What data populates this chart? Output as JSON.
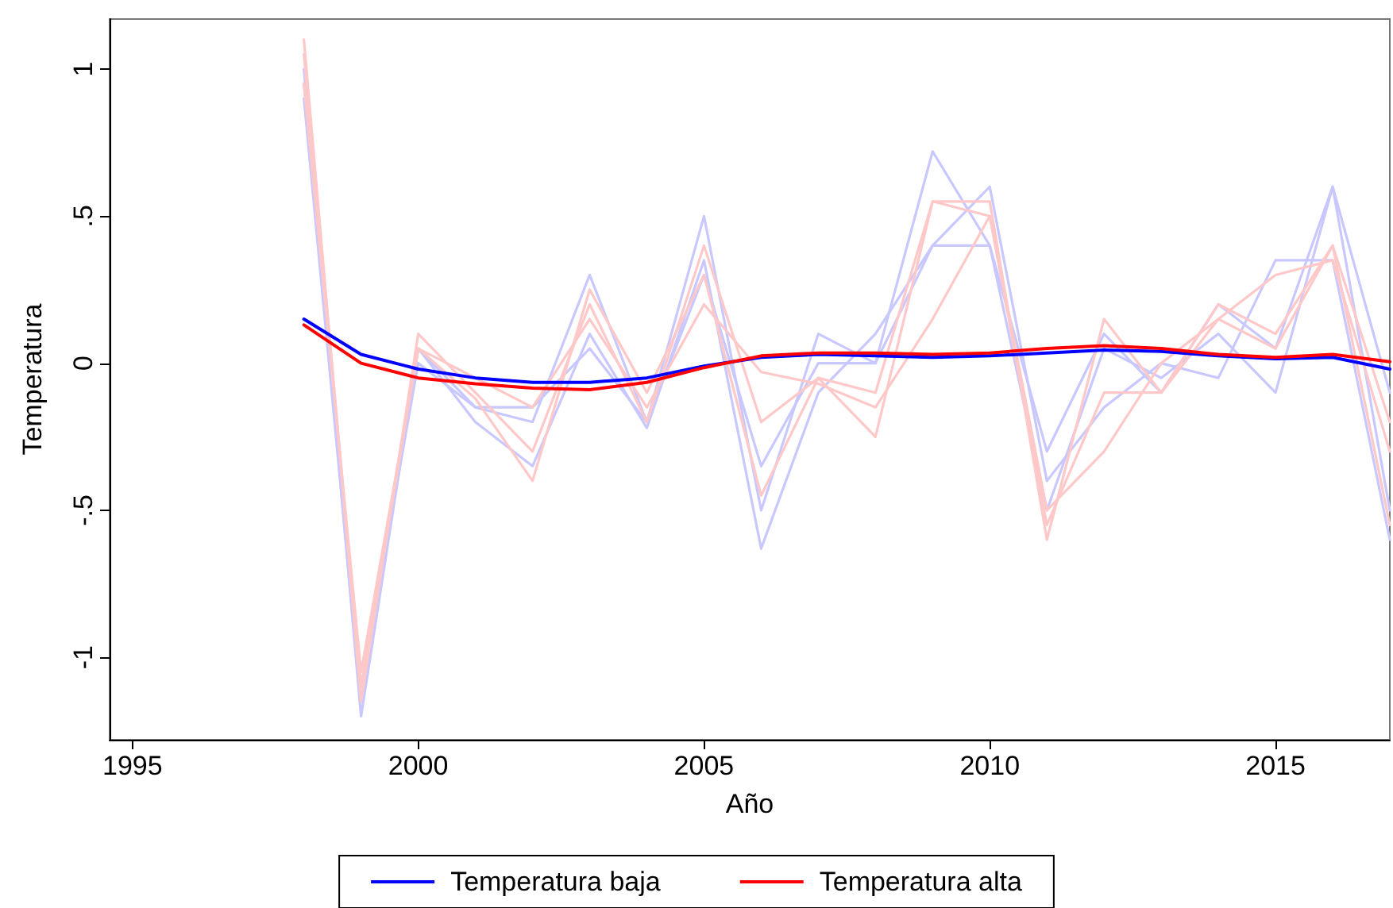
{
  "chart_data": {
    "type": "line",
    "xlabel": "Año",
    "ylabel": "Temperatura",
    "x": [
      1998,
      1999,
      2000,
      2001,
      2002,
      2003,
      2004,
      2005,
      2006,
      2007,
      2008,
      2009,
      2010,
      2011,
      2012,
      2013,
      2014,
      2015,
      2016,
      2017
    ],
    "series": [
      {
        "color": "#c8c8ff",
        "values": [
          1.0,
          -1.2,
          0.05,
          -0.15,
          -0.2,
          0.3,
          -0.2,
          0.5,
          -0.5,
          0.1,
          0.0,
          0.72,
          0.4,
          -0.5,
          0.05,
          -0.05,
          0.1,
          -0.1,
          0.6,
          -0.5
        ]
      },
      {
        "color": "#c8c8ff",
        "values": [
          0.9,
          -1.15,
          0.05,
          -0.2,
          -0.35,
          0.1,
          -0.22,
          0.35,
          -0.63,
          -0.1,
          0.1,
          0.4,
          0.6,
          -0.4,
          -0.15,
          0.0,
          -0.05,
          0.35,
          0.35,
          -0.6
        ]
      },
      {
        "color": "#c8c8ff",
        "values": [
          0.95,
          -1.1,
          0.0,
          -0.15,
          -0.15,
          0.05,
          -0.2,
          0.3,
          -0.35,
          0.0,
          0.0,
          0.4,
          0.4,
          -0.3,
          0.1,
          -0.1,
          0.2,
          0.05,
          0.6,
          -0.1
        ]
      },
      {
        "color": "#ffc8c8",
        "values": [
          1.1,
          -1.15,
          0.1,
          -0.1,
          -0.3,
          0.2,
          -0.2,
          0.4,
          -0.2,
          -0.05,
          -0.1,
          0.55,
          0.55,
          -0.6,
          0.15,
          -0.1,
          0.2,
          0.1,
          0.4,
          -0.55
        ]
      },
      {
        "color": "#ffc8c8",
        "values": [
          1.05,
          -1.1,
          0.05,
          -0.12,
          -0.4,
          0.25,
          -0.1,
          0.3,
          -0.45,
          -0.05,
          -0.25,
          0.55,
          0.5,
          -0.55,
          -0.1,
          -0.1,
          0.15,
          0.3,
          0.35,
          -0.3
        ]
      },
      {
        "color": "#ffc8c8",
        "values": [
          0.95,
          -1.05,
          0.05,
          -0.05,
          -0.15,
          0.15,
          -0.15,
          0.2,
          -0.03,
          -0.07,
          -0.15,
          0.15,
          0.5,
          -0.5,
          -0.3,
          0.0,
          0.15,
          0.05,
          0.4,
          -0.2
        ]
      },
      {
        "name": "Temperatura baja",
        "color": "#0000ff",
        "values": [
          0.15,
          0.03,
          -0.02,
          -0.05,
          -0.065,
          -0.065,
          -0.05,
          -0.01,
          0.02,
          0.03,
          0.025,
          0.02,
          0.025,
          0.035,
          0.045,
          0.04,
          0.025,
          0.015,
          0.02,
          -0.02
        ]
      },
      {
        "name": "Temperatura alta",
        "color": "#ff0000",
        "values": [
          0.13,
          0.0,
          -0.05,
          -0.07,
          -0.085,
          -0.09,
          -0.065,
          -0.015,
          0.025,
          0.035,
          0.035,
          0.03,
          0.035,
          0.05,
          0.06,
          0.05,
          0.03,
          0.02,
          0.03,
          0.005
        ]
      }
    ],
    "xlim": [
      1994.6,
      2017
    ],
    "xticks": [
      1995,
      2000,
      2005,
      2010,
      2015
    ],
    "ylim": [
      -1.28,
      1.17
    ],
    "yticks": [
      {
        "value": -1,
        "label": "-1"
      },
      {
        "value": -0.5,
        "label": "-.5"
      },
      0,
      {
        "value": 0.5,
        "label": ".5"
      },
      1
    ],
    "grid": false,
    "legend": "bottom",
    "marker": "none",
    "line_style": "solid"
  }
}
